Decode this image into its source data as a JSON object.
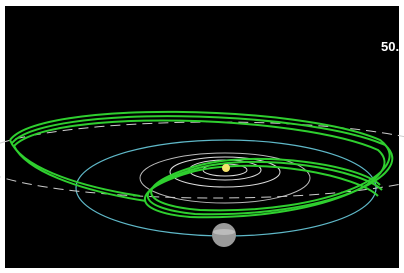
{
  "overlay": {
    "counter": "50."
  }
}
